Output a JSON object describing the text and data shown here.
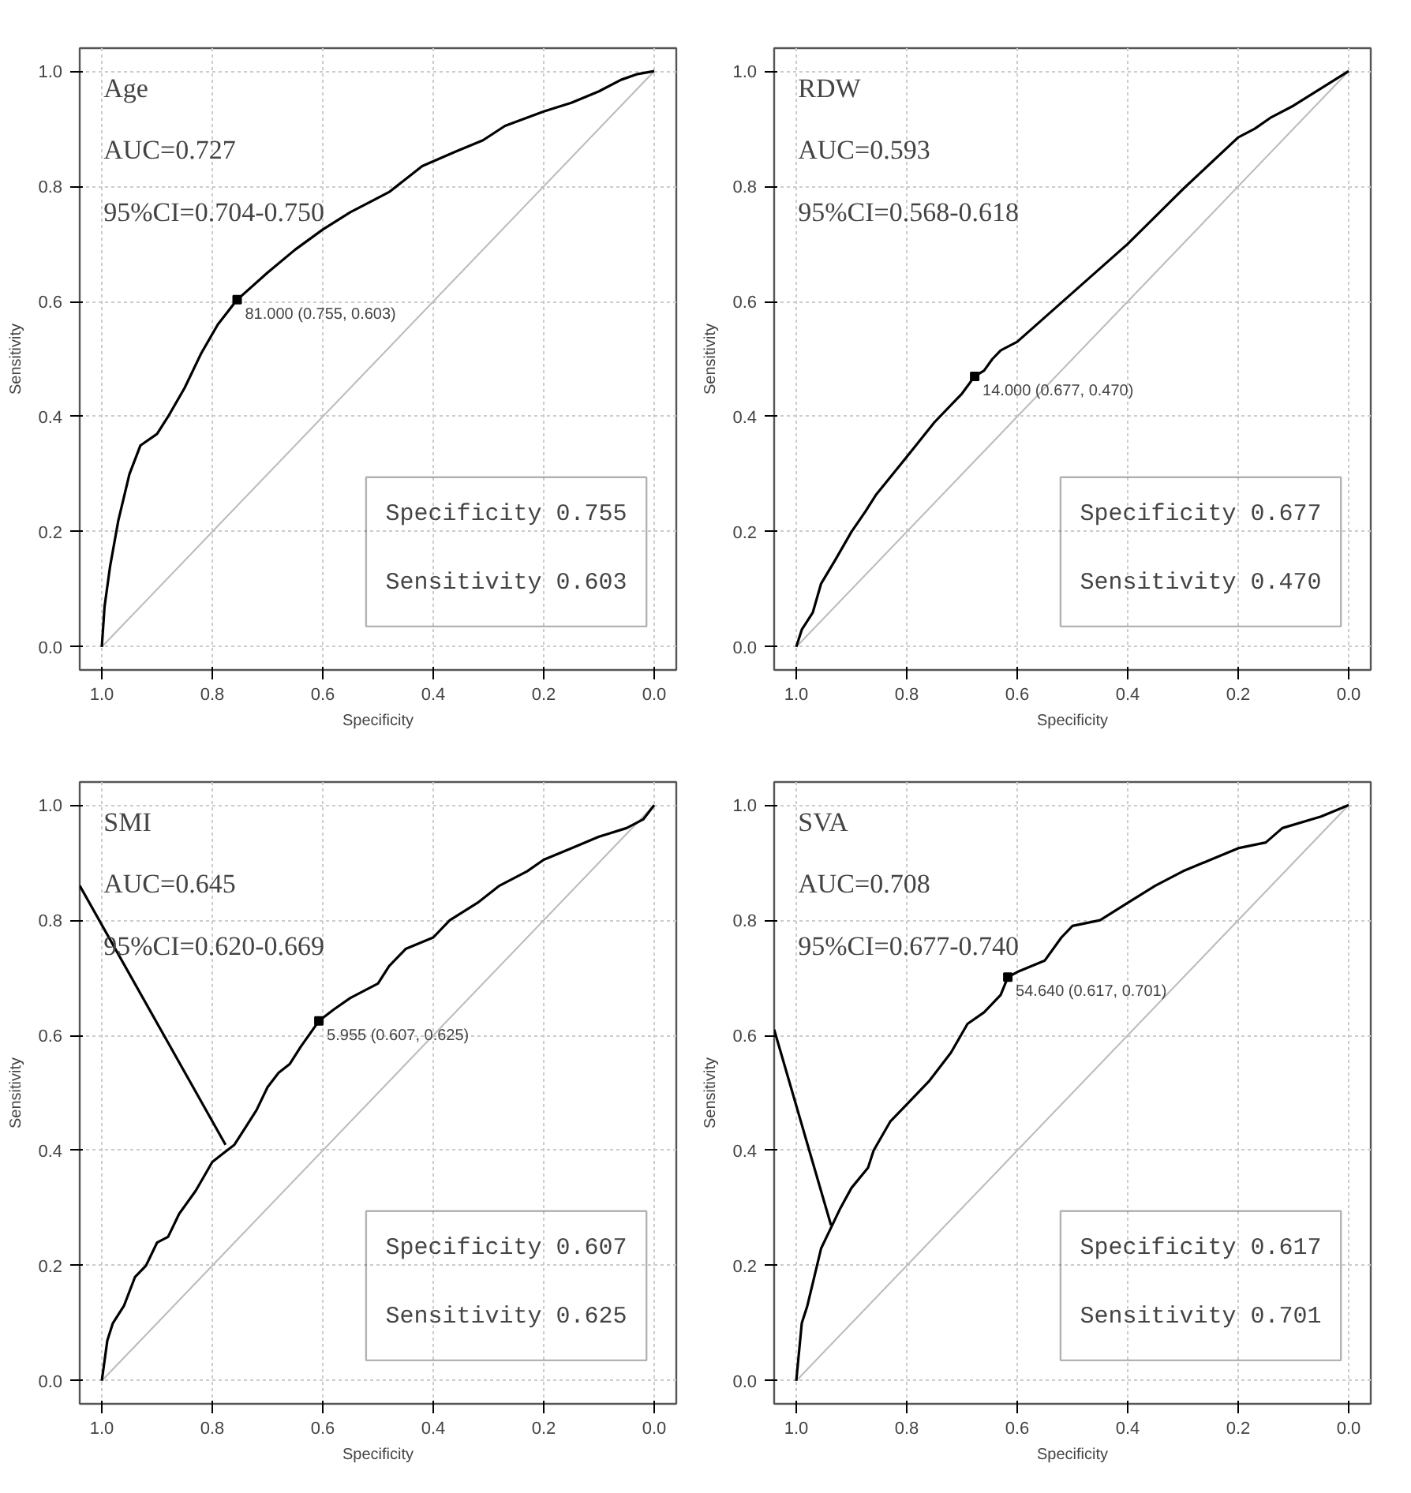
{
  "chart_data": [
    {
      "type": "line",
      "title": "Age",
      "xlabel": "Specificity",
      "ylabel": "Sensitivity",
      "xlim": [
        1.04,
        -0.04
      ],
      "ylim": [
        -0.04,
        1.04
      ],
      "xticks": [
        {
          "value": 1.0,
          "label": "1.0"
        },
        {
          "value": 0.8,
          "label": "0.8"
        },
        {
          "value": 0.6,
          "label": "0.6"
        },
        {
          "value": 0.4,
          "label": "0.4"
        },
        {
          "value": 0.2,
          "label": "0.2"
        },
        {
          "value": 0.0,
          "label": "0.0"
        }
      ],
      "yticks": [
        {
          "value": 0.0,
          "label": "0.0"
        },
        {
          "value": 0.2,
          "label": "0.2"
        },
        {
          "value": 0.4,
          "label": "0.4"
        },
        {
          "value": 0.6,
          "label": "0.6"
        },
        {
          "value": 0.8,
          "label": "0.8"
        },
        {
          "value": 1.0,
          "label": "1.0"
        }
      ],
      "grid": true,
      "annotations": [
        "AUC=0.727",
        "95%CI=0.704-0.750",
        "Specificity 0.755",
        "Sensitivity 0.603",
        {
          "text": "81.000 (0.755, 0.603)",
          "x": 0.755,
          "y": 0.603
        }
      ],
      "series": [
        {
          "type": "line",
          "color": "#bbbbbb",
          "x": [
            1.0,
            0.0
          ],
          "values": [
            0.0,
            1.0
          ]
        },
        {
          "type": "line",
          "color": "#000000",
          "x": [
            1.0,
            0.995,
            0.985,
            0.97,
            0.95,
            0.93,
            0.9,
            0.88,
            0.85,
            0.82,
            0.79,
            0.755,
            0.7,
            0.65,
            0.6,
            0.55,
            0.48,
            0.42,
            0.36,
            0.31,
            0.27,
            0.2,
            0.15,
            0.1,
            0.06,
            0.03,
            0.0
          ],
          "values": [
            0.0,
            0.07,
            0.14,
            0.22,
            0.3,
            0.35,
            0.37,
            0.4,
            0.45,
            0.51,
            0.56,
            0.603,
            0.65,
            0.69,
            0.725,
            0.755,
            0.79,
            0.835,
            0.86,
            0.88,
            0.905,
            0.93,
            0.945,
            0.965,
            0.985,
            0.995,
            1.0
          ]
        },
        {
          "type": "scatter",
          "marker": "square",
          "color": "#000000",
          "x": [
            0.755
          ],
          "values": [
            0.603
          ]
        }
      ]
    },
    {
      "type": "line",
      "title": "RDW",
      "xlabel": "Specificity",
      "ylabel": "Sensitivity",
      "xlim": [
        1.04,
        -0.04
      ],
      "ylim": [
        -0.04,
        1.04
      ],
      "xticks": [
        {
          "value": 1.0,
          "label": "1.0"
        },
        {
          "value": 0.8,
          "label": "0.8"
        },
        {
          "value": 0.6,
          "label": "0.6"
        },
        {
          "value": 0.4,
          "label": "0.4"
        },
        {
          "value": 0.2,
          "label": "0.2"
        },
        {
          "value": 0.0,
          "label": "0.0"
        }
      ],
      "yticks": [
        {
          "value": 0.0,
          "label": "0.0"
        },
        {
          "value": 0.2,
          "label": "0.2"
        },
        {
          "value": 0.4,
          "label": "0.4"
        },
        {
          "value": 0.6,
          "label": "0.6"
        },
        {
          "value": 0.8,
          "label": "0.8"
        },
        {
          "value": 1.0,
          "label": "1.0"
        }
      ],
      "grid": true,
      "annotations": [
        "AUC=0.593",
        "95%CI=0.568-0.618",
        "Specificity 0.677",
        "Sensitivity 0.470",
        {
          "text": "14.000 (0.677, 0.470)",
          "x": 0.677,
          "y": 0.47
        }
      ],
      "series": [
        {
          "type": "line",
          "color": "#bbbbbb",
          "x": [
            1.0,
            0.0
          ],
          "values": [
            0.0,
            1.0
          ]
        },
        {
          "type": "line",
          "color": "#000000",
          "x": [
            1.0,
            0.99,
            0.97,
            0.955,
            0.93,
            0.9,
            0.875,
            0.855,
            0.8,
            0.75,
            0.7,
            0.677,
            0.66,
            0.645,
            0.63,
            0.6,
            0.5,
            0.4,
            0.3,
            0.2,
            0.17,
            0.14,
            0.1,
            0.0
          ],
          "values": [
            0.0,
            0.03,
            0.06,
            0.11,
            0.15,
            0.2,
            0.235,
            0.265,
            0.33,
            0.39,
            0.44,
            0.47,
            0.48,
            0.5,
            0.515,
            0.53,
            0.615,
            0.7,
            0.795,
            0.885,
            0.9,
            0.92,
            0.94,
            1.0
          ]
        },
        {
          "type": "scatter",
          "marker": "square",
          "color": "#000000",
          "x": [
            0.677
          ],
          "values": [
            0.47
          ]
        }
      ]
    },
    {
      "type": "line",
      "title": "SMI",
      "xlabel": "Specificity",
      "ylabel": "Sensitivity",
      "xlim": [
        1.04,
        -0.04
      ],
      "ylim": [
        -0.04,
        1.04
      ],
      "xticks": [
        {
          "value": 1.0,
          "label": "1.0"
        },
        {
          "value": 0.8,
          "label": "0.8"
        },
        {
          "value": 0.6,
          "label": "0.6"
        },
        {
          "value": 0.4,
          "label": "0.4"
        },
        {
          "value": 0.2,
          "label": "0.2"
        },
        {
          "value": 0.0,
          "label": "0.0"
        }
      ],
      "yticks": [
        {
          "value": 0.0,
          "label": "0.0"
        },
        {
          "value": 0.2,
          "label": "0.2"
        },
        {
          "value": 0.4,
          "label": "0.4"
        },
        {
          "value": 0.6,
          "label": "0.6"
        },
        {
          "value": 0.8,
          "label": "0.8"
        },
        {
          "value": 1.0,
          "label": "1.0"
        }
      ],
      "grid": true,
      "annotations": [
        "AUC=0.645",
        "95%CI=0.620-0.669",
        "Specificity 0.607",
        "Sensitivity 0.625",
        {
          "text": "5.955 (0.607, 0.625)",
          "x": 0.607,
          "y": 0.625
        }
      ],
      "series": [
        {
          "type": "line",
          "color": "#bbbbbb",
          "x": [
            1.0,
            0.0
          ],
          "values": [
            0.0,
            1.0
          ]
        },
        {
          "type": "line",
          "color": "#000000",
          "x": [
            1.0,
            0.99,
            0.98,
            0.96,
            0.94,
            0.92,
            0.9,
            0.88,
            0.86,
            0.83,
            0.8,
            0.78,
            0.76,
            0.74,
            0.72,
            0.7,
            0.68,
            0.66,
            0.64,
            0.607,
            0.58,
            0.55,
            0.5,
            0.48,
            0.45,
            0.4,
            0.37,
            0.32,
            0.28,
            0.23,
            0.2,
            0.15,
            0.1,
            0.05,
            0.02,
            0.0
          ],
          "values": [
            0.0,
            0.07,
            0.1,
            0.13,
            0.18,
            0.2,
            0.24,
            0.25,
            0.29,
            0.33,
            0.38,
            0.395,
            0.41,
            0.44,
            0.47,
            0.51,
            0.535,
            0.55,
            0.58,
            0.625,
            0.645,
            0.665,
            0.69,
            0.72,
            0.75,
            0.77,
            0.8,
            0.83,
            0.86,
            0.885,
            0.905,
            0.925,
            0.945,
            0.96,
            0.975,
            1.0
          ]
        },
        {
          "type": "line",
          "color": "#000000",
          "x": [
            1.04,
            0.776
          ],
          "values": [
            0.86,
            0.41
          ]
        },
        {
          "type": "scatter",
          "marker": "square",
          "color": "#000000",
          "x": [
            0.607
          ],
          "values": [
            0.625
          ]
        }
      ]
    },
    {
      "type": "line",
      "title": "SVA",
      "xlabel": "Specificity",
      "ylabel": "Sensitivity",
      "xlim": [
        1.04,
        -0.04
      ],
      "ylim": [
        -0.04,
        1.04
      ],
      "xticks": [
        {
          "value": 1.0,
          "label": "1.0"
        },
        {
          "value": 0.8,
          "label": "0.8"
        },
        {
          "value": 0.6,
          "label": "0.6"
        },
        {
          "value": 0.4,
          "label": "0.4"
        },
        {
          "value": 0.2,
          "label": "0.2"
        },
        {
          "value": 0.0,
          "label": "0.0"
        }
      ],
      "yticks": [
        {
          "value": 0.0,
          "label": "0.0"
        },
        {
          "value": 0.2,
          "label": "0.2"
        },
        {
          "value": 0.4,
          "label": "0.4"
        },
        {
          "value": 0.6,
          "label": "0.6"
        },
        {
          "value": 0.8,
          "label": "0.8"
        },
        {
          "value": 1.0,
          "label": "1.0"
        }
      ],
      "grid": true,
      "annotations": [
        "AUC=0.708",
        "95%CI=0.677-0.740",
        "Specificity 0.617",
        "Sensitivity 0.701",
        {
          "text": "54.640 (0.617, 0.701)",
          "x": 0.617,
          "y": 0.701
        }
      ],
      "series": [
        {
          "type": "line",
          "color": "#bbbbbb",
          "x": [
            1.0,
            0.0
          ],
          "values": [
            0.0,
            1.0
          ]
        },
        {
          "type": "line",
          "color": "#000000",
          "x": [
            1.0,
            0.99,
            0.98,
            0.97,
            0.955,
            0.94,
            0.92,
            0.9,
            0.87,
            0.86,
            0.83,
            0.8,
            0.76,
            0.72,
            0.69,
            0.66,
            0.63,
            0.617,
            0.6,
            0.55,
            0.52,
            0.5,
            0.45,
            0.4,
            0.35,
            0.3,
            0.25,
            0.2,
            0.15,
            0.12,
            0.05,
            0.0
          ],
          "values": [
            0.0,
            0.1,
            0.13,
            0.17,
            0.23,
            0.26,
            0.3,
            0.335,
            0.37,
            0.4,
            0.45,
            0.48,
            0.52,
            0.57,
            0.62,
            0.64,
            0.67,
            0.701,
            0.71,
            0.73,
            0.77,
            0.79,
            0.8,
            0.83,
            0.86,
            0.885,
            0.905,
            0.925,
            0.935,
            0.96,
            0.98,
            1.0
          ]
        },
        {
          "type": "line",
          "color": "#000000",
          "x": [
            1.04,
            0.937
          ],
          "values": [
            0.61,
            0.27
          ]
        },
        {
          "type": "scatter",
          "marker": "square",
          "color": "#000000",
          "x": [
            0.617
          ],
          "values": [
            0.701
          ]
        }
      ]
    }
  ]
}
